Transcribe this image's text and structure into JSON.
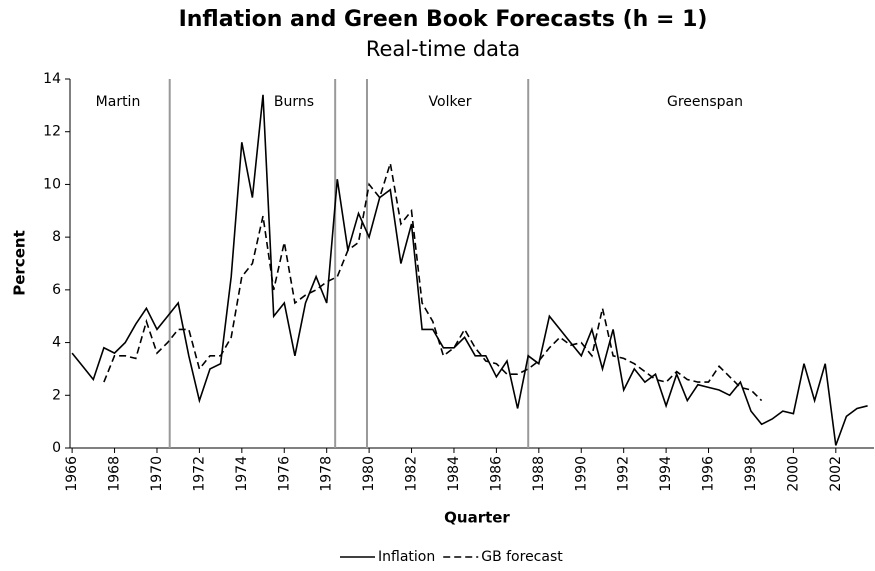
{
  "chart_data": {
    "type": "line",
    "title": "Inflation and Green Book Forecasts (h = 1)",
    "subtitle": "Real-time data",
    "x_label": "Quarter",
    "y_label": "Percent",
    "x": [
      1966,
      1966.5,
      1967,
      1967.5,
      1968,
      1968.5,
      1969,
      1969.5,
      1970,
      1970.5,
      1971,
      1971.5,
      1972,
      1972.5,
      1973,
      1973.5,
      1974,
      1974.5,
      1975,
      1975.5,
      1976,
      1976.5,
      1977,
      1977.5,
      1978,
      1978.5,
      1979,
      1979.5,
      1980,
      1980.5,
      1981,
      1981.5,
      1982,
      1982.5,
      1983,
      1983.5,
      1984,
      1984.5,
      1985,
      1985.5,
      1986,
      1986.5,
      1987,
      1987.5,
      1988,
      1988.5,
      1989,
      1989.5,
      1990,
      1990.5,
      1991,
      1991.5,
      1992,
      1992.5,
      1993,
      1993.5,
      1994,
      1994.5,
      1995,
      1995.5,
      1996,
      1996.5,
      1997,
      1997.5,
      1998,
      1998.5,
      1999,
      1999.5,
      2000,
      2000.5,
      2001,
      2001.5,
      2002,
      2002.5,
      2003,
      2003.5
    ],
    "series": [
      {
        "name": "Inflation",
        "color": "#000000",
        "dash": "solid",
        "values": [
          3.6,
          3.1,
          2.6,
          3.8,
          3.6,
          4.0,
          4.7,
          5.3,
          4.5,
          5.0,
          5.5,
          3.5,
          1.8,
          3.0,
          3.2,
          6.5,
          11.6,
          9.5,
          13.4,
          5.0,
          5.5,
          3.5,
          5.5,
          6.5,
          5.5,
          10.2,
          7.5,
          8.9,
          8.0,
          9.5,
          9.8,
          7.0,
          8.5,
          4.5,
          4.5,
          3.8,
          3.8,
          4.2,
          3.5,
          3.5,
          2.7,
          3.3,
          1.5,
          3.5,
          3.2,
          5.0,
          4.5,
          4.0,
          3.5,
          4.5,
          3.0,
          4.5,
          2.2,
          3.0,
          2.5,
          2.8,
          1.6,
          2.8,
          1.8,
          2.4,
          2.3,
          2.2,
          2.0,
          2.5,
          1.4,
          0.9,
          1.1,
          1.4,
          1.3,
          3.2,
          1.8,
          3.2,
          0.1,
          1.2,
          1.5,
          1.6
        ]
      },
      {
        "name": "GB forecast",
        "color": "#000000",
        "dash": "dashed",
        "values": [
          null,
          null,
          null,
          2.5,
          3.5,
          3.5,
          3.4,
          4.8,
          3.6,
          4.0,
          4.5,
          4.5,
          3.0,
          3.5,
          3.5,
          4.2,
          6.5,
          7.0,
          8.8,
          6.0,
          7.8,
          5.5,
          5.8,
          6.0,
          6.3,
          6.5,
          7.5,
          7.8,
          10.0,
          9.5,
          10.8,
          8.5,
          9.0,
          5.5,
          4.8,
          3.5,
          3.8,
          4.5,
          3.8,
          3.3,
          3.2,
          2.8,
          2.8,
          3.0,
          3.3,
          3.8,
          4.2,
          3.9,
          4.0,
          3.5,
          5.3,
          3.5,
          3.4,
          3.2,
          2.9,
          2.6,
          2.5,
          2.9,
          2.6,
          2.5,
          2.5,
          3.1,
          2.7,
          2.3,
          2.2,
          1.8,
          null,
          null,
          null,
          null,
          null,
          null,
          null,
          null,
          null,
          null
        ]
      }
    ],
    "xlim": [
      1965.9,
      2003.8
    ],
    "xticks": [
      1966,
      1968,
      1970,
      1972,
      1974,
      1976,
      1978,
      1980,
      1982,
      1984,
      1986,
      1988,
      1990,
      1992,
      1994,
      1996,
      1998,
      2000,
      2002
    ],
    "ylim": [
      0,
      14
    ],
    "yticks": [
      0,
      2,
      4,
      6,
      8,
      10,
      12,
      14
    ],
    "vlines": [
      1970.6,
      1978.4,
      1979.9,
      1987.5
    ],
    "annotations": [
      "Martin",
      "Burns",
      "Volker",
      "Greenspan"
    ],
    "vline_color": "#999999",
    "legend": "bottom"
  }
}
